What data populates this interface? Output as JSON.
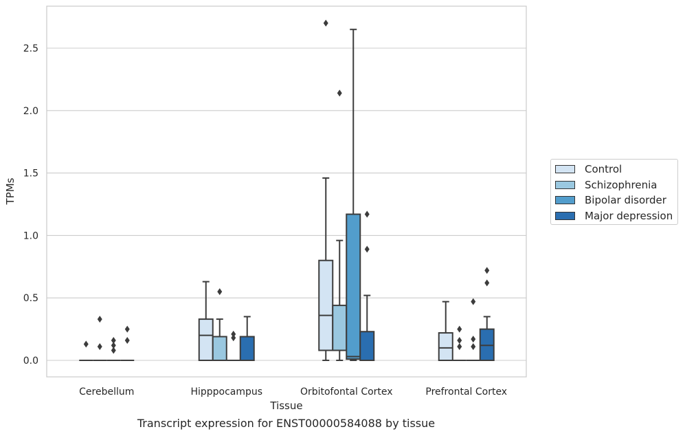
{
  "caption": "Transcript expression for ENST00000584088 by tissue",
  "colors": {
    "Control": "#d3e4f3",
    "Schizophrenia": "#9ac8e0",
    "Bipolar disorder": "#529dcc",
    "Major depression": "#2a6eb0",
    "grid": "#cccccc",
    "edge": "#3c3c3c"
  },
  "chart_data": {
    "type": "box",
    "title": "",
    "xlabel": "Tissue",
    "ylabel": "TPMs",
    "ylim": [
      -0.13,
      2.85
    ],
    "yticks": [
      "0.0",
      "0.5",
      "1.0",
      "1.5",
      "2.0",
      "2.5"
    ],
    "categories": [
      "Cerebellum",
      "Hipppocampus",
      "Orbitofontal Cortex",
      "Prefrontal Cortex"
    ],
    "grid": "horizontal",
    "legend_position": "right",
    "series": [
      {
        "name": "Control",
        "boxes": [
          {
            "min": 0,
            "q1": 0,
            "median": 0,
            "q3": 0,
            "max": 0,
            "outliers": [
              0.13
            ]
          },
          {
            "min": 0,
            "q1": 0,
            "median": 0.2,
            "q3": 0.33,
            "max": 0.63,
            "outliers": []
          },
          {
            "min": 0,
            "q1": 0.08,
            "median": 0.36,
            "q3": 0.8,
            "max": 1.46,
            "outliers": [
              2.7
            ]
          },
          {
            "min": 0,
            "q1": 0,
            "median": 0.1,
            "q3": 0.22,
            "max": 0.47,
            "outliers": []
          }
        ]
      },
      {
        "name": "Schizophrenia",
        "boxes": [
          {
            "min": 0,
            "q1": 0,
            "median": 0,
            "q3": 0,
            "max": 0,
            "outliers": [
              0.33,
              0.11
            ]
          },
          {
            "min": 0,
            "q1": 0,
            "median": 0.19,
            "q3": 0.19,
            "max": 0.33,
            "outliers": [
              0.55
            ]
          },
          {
            "min": 0,
            "q1": 0.08,
            "median": 0.08,
            "q3": 0.44,
            "max": 0.96,
            "outliers": [
              2.14
            ]
          },
          {
            "min": 0,
            "q1": 0,
            "median": 0,
            "q3": 0,
            "max": 0,
            "outliers": [
              0.25,
              0.16,
              0.11
            ]
          }
        ]
      },
      {
        "name": "Bipolar disorder",
        "boxes": [
          {
            "min": 0,
            "q1": 0,
            "median": 0,
            "q3": 0,
            "max": 0,
            "outliers": [
              0.16,
              0.12,
              0.08
            ]
          },
          {
            "min": 0,
            "q1": 0,
            "median": 0,
            "q3": 0,
            "max": 0,
            "outliers": [
              0.21,
              0.18
            ]
          },
          {
            "min": 0,
            "q1": 0.01,
            "median": 0.03,
            "q3": 1.17,
            "max": 2.65,
            "outliers": []
          },
          {
            "min": 0,
            "q1": 0,
            "median": 0,
            "q3": 0,
            "max": 0,
            "outliers": [
              0.47,
              0.17,
              0.11
            ]
          }
        ]
      },
      {
        "name": "Major depression",
        "boxes": [
          {
            "min": 0,
            "q1": 0,
            "median": 0,
            "q3": 0,
            "max": 0,
            "outliers": [
              0.25,
              0.16
            ]
          },
          {
            "min": 0,
            "q1": 0,
            "median": 0,
            "q3": 0.19,
            "max": 0.35,
            "outliers": []
          },
          {
            "min": 0,
            "q1": 0,
            "median": 0,
            "q3": 0.23,
            "max": 0.52,
            "outliers": [
              1.17,
              0.89
            ]
          },
          {
            "min": 0,
            "q1": 0,
            "median": 0.12,
            "q3": 0.25,
            "max": 0.35,
            "outliers": [
              0.72,
              0.62
            ]
          }
        ]
      }
    ]
  }
}
